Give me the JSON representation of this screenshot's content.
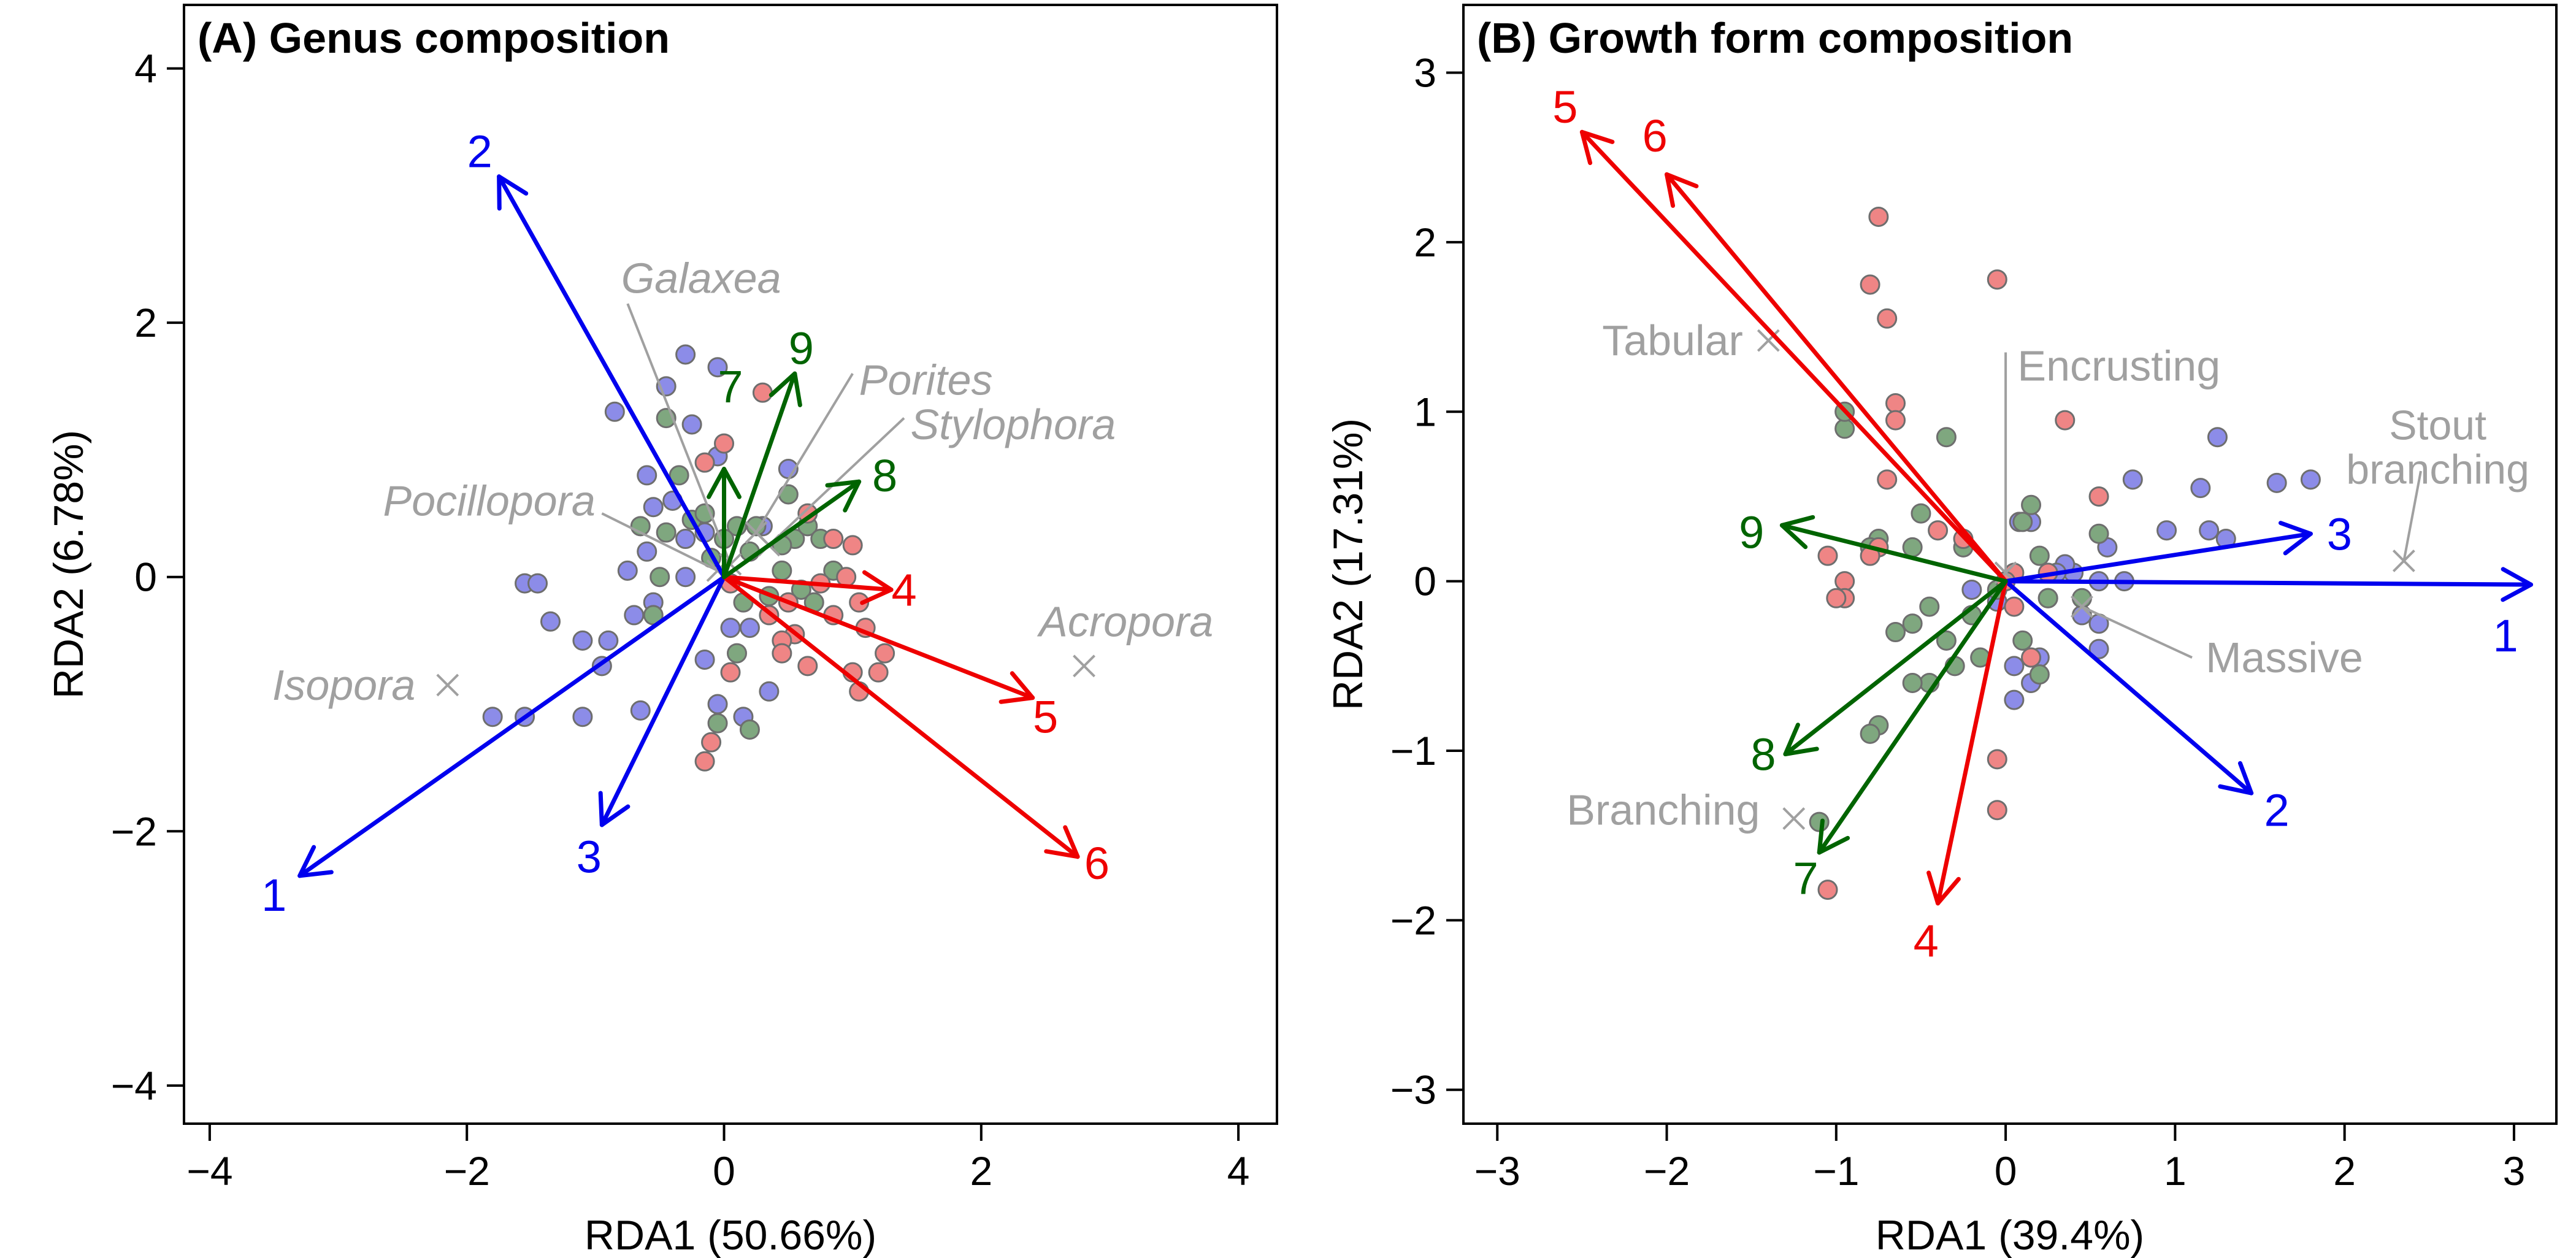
{
  "chart_data": [
    {
      "panel": "A",
      "type": "scatter",
      "title": "(A) Genus composition",
      "xlabel": "RDA1 (50.66%)",
      "ylabel": "RDA2 (6.78%)",
      "xlim": [
        -4.2,
        4.3
      ],
      "ylim": [
        -4.3,
        4.5
      ],
      "xticks": [
        -4,
        -2,
        0,
        2,
        4
      ],
      "yticks": [
        -4,
        -2,
        0,
        2,
        4
      ],
      "tick_labels_x": [
        "−4",
        "−2",
        "0",
        "2",
        "4"
      ],
      "tick_labels_y": [
        "−4",
        "−2",
        "0",
        "2",
        "4"
      ],
      "grid": false,
      "arrows": [
        {
          "label": "1",
          "x": -3.3,
          "y": -2.35,
          "color": "#0000ee",
          "lx": -3.5,
          "ly": -2.5
        },
        {
          "label": "2",
          "x": -1.75,
          "y": 3.15,
          "color": "#0000ee",
          "lx": -1.9,
          "ly": 3.35
        },
        {
          "label": "3",
          "x": -0.95,
          "y": -1.95,
          "color": "#0000ee",
          "lx": -1.05,
          "ly": -2.2
        },
        {
          "label": "4",
          "x": 1.3,
          "y": -0.1,
          "color": "#ee0000",
          "lx": 1.4,
          "ly": -0.1
        },
        {
          "label": "5",
          "x": 2.4,
          "y": -0.95,
          "color": "#ee0000",
          "lx": 2.5,
          "ly": -1.1
        },
        {
          "label": "6",
          "x": 2.75,
          "y": -2.2,
          "color": "#ee0000",
          "lx": 2.9,
          "ly": -2.25
        },
        {
          "label": "7",
          "x": 0.0,
          "y": 0.85,
          "color": "#006400",
          "lx": 0.05,
          "ly": 1.5
        },
        {
          "label": "8",
          "x": 1.05,
          "y": 0.75,
          "color": "#006400",
          "lx": 1.25,
          "ly": 0.8
        },
        {
          "label": "9",
          "x": 0.55,
          "y": 1.6,
          "color": "#006400",
          "lx": 0.6,
          "ly": 1.8
        }
      ],
      "species": [
        {
          "label": "Galaxea",
          "x": 0.05,
          "y": 0.1,
          "lx": -0.8,
          "ly": 2.35,
          "anchor": "start",
          "line_to": [
            -0.75,
            2.15
          ]
        },
        {
          "label": "Porites",
          "x": 0.25,
          "y": 0.35,
          "lx": 1.05,
          "ly": 1.55,
          "anchor": "start",
          "line_to": [
            1.0,
            1.6
          ]
        },
        {
          "label": "Stylophora",
          "x": 0.35,
          "y": 0.25,
          "lx": 1.45,
          "ly": 1.2,
          "anchor": "start",
          "line_to": [
            1.4,
            1.25
          ]
        },
        {
          "label": "Pocillopora",
          "x": -0.05,
          "y": 0.05,
          "lx": -1.0,
          "ly": 0.6,
          "anchor": "end",
          "line_to": [
            -0.95,
            0.5
          ]
        },
        {
          "label": "Acropora",
          "x": 2.8,
          "y": -0.7,
          "lx": 2.45,
          "ly": -0.35,
          "anchor": "start",
          "line_to": null
        },
        {
          "label": "Isopora",
          "x": -2.15,
          "y": -0.85,
          "lx": -2.4,
          "ly": -0.85,
          "anchor": "end",
          "line_to": null
        }
      ],
      "points": {
        "blue": [
          [
            -0.3,
            1.75
          ],
          [
            -0.05,
            1.65
          ],
          [
            -0.45,
            1.5
          ],
          [
            -0.85,
            1.3
          ],
          [
            0.5,
            0.85
          ],
          [
            -0.6,
            0.8
          ],
          [
            -0.25,
            1.2
          ],
          [
            -0.05,
            0.95
          ],
          [
            -0.55,
            0.55
          ],
          [
            -0.4,
            0.6
          ],
          [
            -1.55,
            -0.05
          ],
          [
            -1.45,
            -0.05
          ],
          [
            -1.35,
            -0.35
          ],
          [
            -1.1,
            -0.5
          ],
          [
            -0.9,
            -0.5
          ],
          [
            -0.95,
            -0.7
          ],
          [
            -0.7,
            -0.3
          ],
          [
            -0.55,
            -0.2
          ],
          [
            -0.3,
            0.3
          ],
          [
            -0.6,
            0.2
          ],
          [
            -0.75,
            0.05
          ],
          [
            -1.8,
            -1.1
          ],
          [
            -1.55,
            -1.1
          ],
          [
            -1.1,
            -1.1
          ],
          [
            -0.65,
            -1.05
          ],
          [
            0.2,
            -0.4
          ],
          [
            0.05,
            -0.4
          ],
          [
            -0.15,
            -0.65
          ],
          [
            0.35,
            -0.9
          ],
          [
            0.15,
            -1.1
          ],
          [
            -0.05,
            -1.0
          ],
          [
            -0.3,
            0.0
          ],
          [
            -0.15,
            0.35
          ],
          [
            0.3,
            0.4
          ]
        ],
        "green": [
          [
            -0.45,
            1.25
          ],
          [
            -0.35,
            0.8
          ],
          [
            -0.25,
            0.45
          ],
          [
            -0.65,
            0.4
          ],
          [
            -0.45,
            0.35
          ],
          [
            -0.5,
            0.0
          ],
          [
            -0.55,
            -0.3
          ],
          [
            -0.15,
            0.5
          ],
          [
            0.1,
            0.4
          ],
          [
            0.25,
            0.4
          ],
          [
            0.5,
            0.65
          ],
          [
            0.55,
            0.3
          ],
          [
            0.65,
            0.4
          ],
          [
            0.75,
            0.3
          ],
          [
            0.45,
            0.05
          ],
          [
            0.6,
            -0.1
          ],
          [
            0.7,
            -0.2
          ],
          [
            0.35,
            -0.15
          ],
          [
            0.15,
            -0.2
          ],
          [
            0.0,
            0.3
          ],
          [
            0.2,
            0.2
          ],
          [
            -0.1,
            0.15
          ],
          [
            0.1,
            -0.6
          ],
          [
            -0.05,
            -1.15
          ],
          [
            0.2,
            -1.2
          ],
          [
            0.45,
            0.25
          ],
          [
            0.85,
            0.05
          ]
        ],
        "red": [
          [
            -0.15,
            0.9
          ],
          [
            0.0,
            1.05
          ],
          [
            0.3,
            1.45
          ],
          [
            0.65,
            0.5
          ],
          [
            0.85,
            0.3
          ],
          [
            1.0,
            0.25
          ],
          [
            0.95,
            0.0
          ],
          [
            0.75,
            -0.05
          ],
          [
            0.85,
            -0.3
          ],
          [
            1.05,
            -0.2
          ],
          [
            1.1,
            -0.4
          ],
          [
            1.25,
            -0.6
          ],
          [
            1.2,
            -0.75
          ],
          [
            1.0,
            -0.75
          ],
          [
            1.05,
            -0.9
          ],
          [
            0.65,
            -0.7
          ],
          [
            0.55,
            -0.45
          ],
          [
            0.45,
            -0.5
          ],
          [
            0.5,
            -0.2
          ],
          [
            0.45,
            -0.6
          ],
          [
            0.05,
            -0.75
          ],
          [
            -0.1,
            -1.3
          ],
          [
            -0.15,
            -1.45
          ],
          [
            0.05,
            -0.05
          ],
          [
            0.35,
            -0.3
          ]
        ]
      }
    },
    {
      "panel": "B",
      "type": "scatter",
      "title": "(B) Growth form composition",
      "xlabel": "RDA1 (39.4%)",
      "ylabel": "RDA2 (17.31%)",
      "xlim": [
        -3.2,
        3.25
      ],
      "ylim": [
        -3.2,
        3.4
      ],
      "xticks": [
        -3,
        -2,
        -1,
        0,
        1,
        2,
        3
      ],
      "yticks": [
        -3,
        -2,
        -1,
        0,
        1,
        2,
        3
      ],
      "tick_labels_x": [
        "−3",
        "−2",
        "−1",
        "0",
        "1",
        "2",
        "3"
      ],
      "tick_labels_y": [
        "−3",
        "−2",
        "−1",
        "0",
        "1",
        "2",
        "3"
      ],
      "grid": false,
      "arrows": [
        {
          "label": "1",
          "x": 3.1,
          "y": -0.02,
          "color": "#0000ee",
          "lx": 2.95,
          "ly": -0.32
        },
        {
          "label": "2",
          "x": 1.45,
          "y": -1.25,
          "color": "#0000ee",
          "lx": 1.6,
          "ly": -1.35
        },
        {
          "label": "3",
          "x": 1.8,
          "y": 0.28,
          "color": "#0000ee",
          "lx": 1.97,
          "ly": 0.28
        },
        {
          "label": "4",
          "x": -0.4,
          "y": -1.9,
          "color": "#ee0000",
          "lx": -0.47,
          "ly": -2.12
        },
        {
          "label": "5",
          "x": -2.5,
          "y": 2.65,
          "color": "#ee0000",
          "lx": -2.6,
          "ly": 2.8
        },
        {
          "label": "6",
          "x": -2.0,
          "y": 2.4,
          "color": "#ee0000",
          "lx": -2.07,
          "ly": 2.63
        },
        {
          "label": "7",
          "x": -1.1,
          "y": -1.6,
          "color": "#006400",
          "lx": -1.18,
          "ly": -1.75
        },
        {
          "label": "8",
          "x": -1.3,
          "y": -1.02,
          "color": "#006400",
          "lx": -1.43,
          "ly": -1.02
        },
        {
          "label": "9",
          "x": -1.32,
          "y": 0.33,
          "color": "#006400",
          "lx": -1.5,
          "ly": 0.29
        }
      ],
      "species": [
        {
          "label": "Tabular",
          "x": -1.4,
          "y": 1.42,
          "lx": -1.55,
          "ly": 1.42,
          "anchor": "end",
          "line_to": null
        },
        {
          "label": "Encrusting",
          "x": 0.0,
          "y": 0.05,
          "lx": 0.07,
          "ly": 1.27,
          "anchor": "start",
          "line_to": [
            0.0,
            1.35
          ]
        },
        {
          "label": "Stout branching",
          "x": 2.35,
          "y": 0.12,
          "lx": 2.55,
          "ly": 0.8,
          "anchor": "middle",
          "line_to": [
            2.45,
            0.65
          ],
          "label2": "branching",
          "label1": "Stout"
        },
        {
          "label": "Massive",
          "x": 0.45,
          "y": -0.15,
          "lx": 1.18,
          "ly": -0.45,
          "anchor": "start",
          "line_to": [
            1.1,
            -0.45
          ]
        },
        {
          "label": "Branching",
          "x": -1.25,
          "y": -1.4,
          "lx": -1.45,
          "ly": -1.35,
          "anchor": "end",
          "line_to": null
        }
      ],
      "points": {
        "blue": [
          [
            1.25,
            0.85
          ],
          [
            0.75,
            0.6
          ],
          [
            1.15,
            0.55
          ],
          [
            1.6,
            0.58
          ],
          [
            1.8,
            0.6
          ],
          [
            1.2,
            0.3
          ],
          [
            0.95,
            0.3
          ],
          [
            1.3,
            0.25
          ],
          [
            0.6,
            0.2
          ],
          [
            0.4,
            0.05
          ],
          [
            0.55,
            0.0
          ],
          [
            0.7,
            0.0
          ],
          [
            0.35,
            0.1
          ],
          [
            0.25,
            -0.1
          ],
          [
            0.45,
            -0.2
          ],
          [
            0.55,
            -0.25
          ],
          [
            0.2,
            -0.45
          ],
          [
            0.05,
            -0.5
          ],
          [
            0.15,
            -0.6
          ],
          [
            0.05,
            -0.7
          ],
          [
            0.55,
            -0.4
          ],
          [
            0.3,
            0.05
          ],
          [
            0.08,
            0.35
          ],
          [
            0.15,
            0.35
          ],
          [
            -0.2,
            -0.05
          ],
          [
            -0.05,
            -0.12
          ]
        ],
        "green": [
          [
            -0.95,
            0.9
          ],
          [
            -0.95,
            1.0
          ],
          [
            -0.35,
            0.85
          ],
          [
            -0.5,
            0.4
          ],
          [
            -0.55,
            0.2
          ],
          [
            -0.45,
            -0.15
          ],
          [
            -0.65,
            -0.3
          ],
          [
            -0.55,
            -0.25
          ],
          [
            -0.75,
            0.25
          ],
          [
            -0.8,
            0.2
          ],
          [
            -0.25,
            0.2
          ],
          [
            0.15,
            0.45
          ],
          [
            0.1,
            0.35
          ],
          [
            0.55,
            0.28
          ],
          [
            0.2,
            0.15
          ],
          [
            0.25,
            -0.1
          ],
          [
            -0.2,
            -0.2
          ],
          [
            -0.35,
            -0.35
          ],
          [
            -0.15,
            -0.45
          ],
          [
            -0.3,
            -0.5
          ],
          [
            -0.45,
            -0.6
          ],
          [
            -0.55,
            -0.6
          ],
          [
            -0.75,
            -0.85
          ],
          [
            -0.8,
            -0.9
          ],
          [
            -1.1,
            -1.42
          ],
          [
            0.2,
            -0.55
          ],
          [
            0.1,
            -0.35
          ],
          [
            -0.05,
            -0.05
          ],
          [
            0.45,
            -0.1
          ]
        ],
        "red": [
          [
            -0.75,
            2.15
          ],
          [
            -0.8,
            1.75
          ],
          [
            -0.7,
            1.55
          ],
          [
            -0.05,
            1.78
          ],
          [
            -0.65,
            1.05
          ],
          [
            -0.65,
            0.95
          ],
          [
            -0.7,
            0.6
          ],
          [
            -0.4,
            0.3
          ],
          [
            -0.25,
            0.25
          ],
          [
            0.35,
            0.95
          ],
          [
            0.55,
            0.5
          ],
          [
            0.25,
            0.05
          ],
          [
            -0.75,
            0.2
          ],
          [
            -0.8,
            0.15
          ],
          [
            -1.05,
            0.15
          ],
          [
            -0.95,
            0.0
          ],
          [
            -0.95,
            -0.1
          ],
          [
            -1.0,
            -0.1
          ],
          [
            0.05,
            -0.15
          ],
          [
            0.15,
            -0.45
          ],
          [
            -0.05,
            -1.05
          ],
          [
            -0.05,
            -1.35
          ],
          [
            -1.05,
            -1.82
          ],
          [
            0.05,
            0.05
          ],
          [
            0.0,
            0.0
          ]
        ]
      }
    }
  ]
}
